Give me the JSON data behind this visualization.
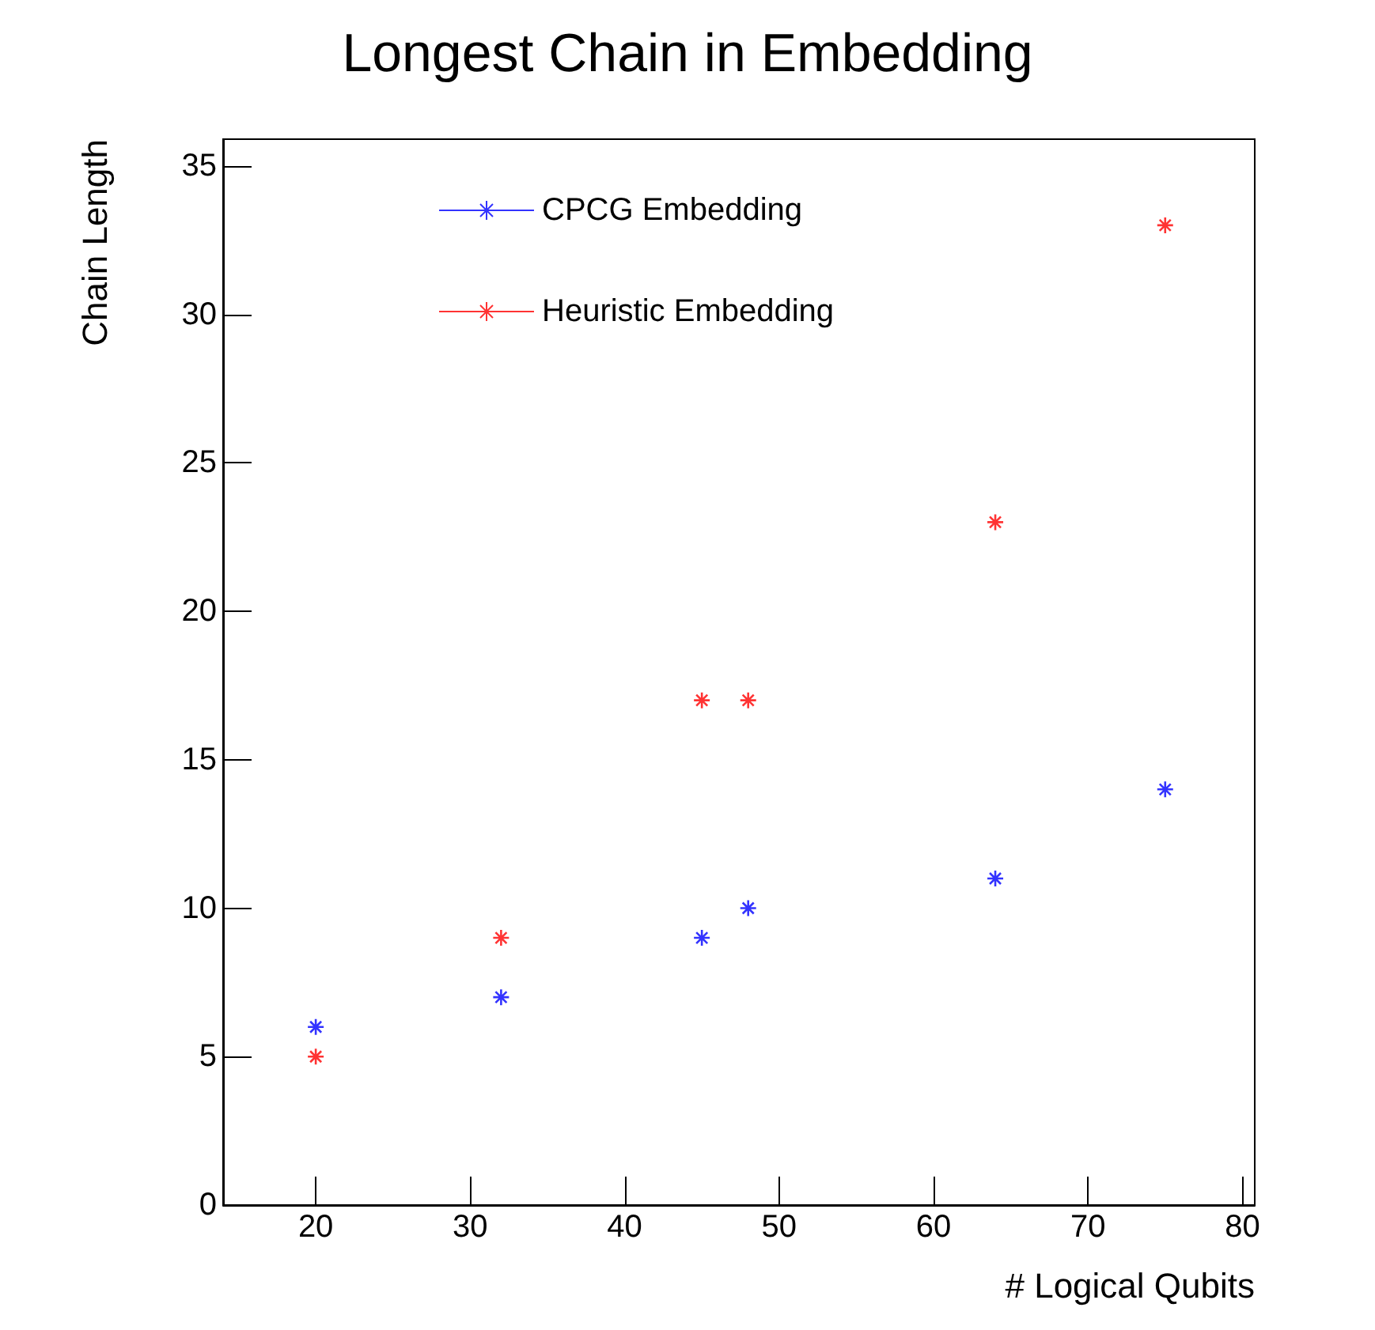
{
  "chart_data": {
    "type": "scatter",
    "title": "Longest Chain in Embedding",
    "xlabel": "# Logical Qubits",
    "ylabel": "Chain Length",
    "x": [
      20,
      32,
      45,
      48,
      64,
      75
    ],
    "series": [
      {
        "name": "CPCG Embedding",
        "color": "#0000ff",
        "values": [
          6,
          7,
          9,
          10,
          11,
          14
        ]
      },
      {
        "name": "Heuristic Embedding",
        "color": "#ff0000",
        "values": [
          5,
          9,
          17,
          17,
          23,
          33
        ]
      }
    ],
    "xlim": [
      14,
      80.8
    ],
    "xticks": [
      20,
      30,
      40,
      50,
      60,
      70,
      80
    ],
    "ylim": [
      0,
      35.9
    ],
    "yticks": [
      0,
      5,
      10,
      15,
      20,
      25,
      30,
      35
    ],
    "grid": false,
    "legend": "top left",
    "marker": "cross"
  }
}
